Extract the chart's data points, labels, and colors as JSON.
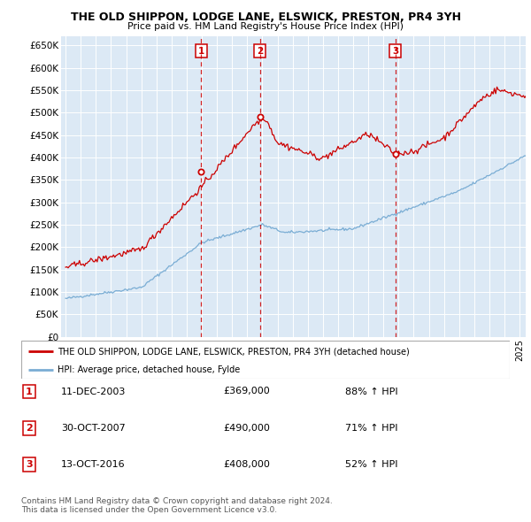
{
  "title": "THE OLD SHIPPON, LODGE LANE, ELSWICK, PRESTON, PR4 3YH",
  "subtitle": "Price paid vs. HM Land Registry's House Price Index (HPI)",
  "ylim": [
    0,
    670000
  ],
  "yticks": [
    0,
    50000,
    100000,
    150000,
    200000,
    250000,
    300000,
    350000,
    400000,
    450000,
    500000,
    550000,
    600000,
    650000
  ],
  "ytick_labels": [
    "£0",
    "£50K",
    "£100K",
    "£150K",
    "£200K",
    "£250K",
    "£300K",
    "£350K",
    "£400K",
    "£450K",
    "£500K",
    "£550K",
    "£600K",
    "£650K"
  ],
  "plot_bg_color": "#dce9f5",
  "line_color_red": "#cc0000",
  "line_color_blue": "#7aadd4",
  "transaction_dates": [
    2003.95,
    2007.83,
    2016.79
  ],
  "transaction_labels": [
    "1",
    "2",
    "3"
  ],
  "transaction_prices": [
    369000,
    490000,
    408000
  ],
  "legend_line1": "THE OLD SHIPPON, LODGE LANE, ELSWICK, PRESTON, PR4 3YH (detached house)",
  "legend_line2": "HPI: Average price, detached house, Fylde",
  "table_rows": [
    [
      "1",
      "11-DEC-2003",
      "£369,000",
      "88% ↑ HPI"
    ],
    [
      "2",
      "30-OCT-2007",
      "£490,000",
      "71% ↑ HPI"
    ],
    [
      "3",
      "13-OCT-2016",
      "£408,000",
      "52% ↑ HPI"
    ]
  ],
  "footer": "Contains HM Land Registry data © Crown copyright and database right 2024.\nThis data is licensed under the Open Government Licence v3.0."
}
